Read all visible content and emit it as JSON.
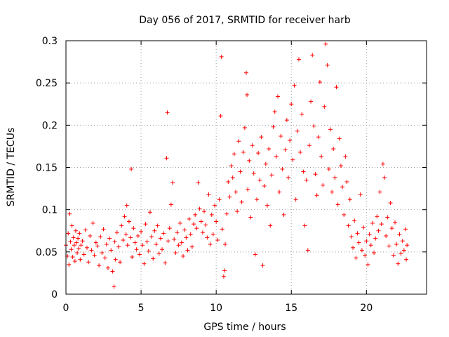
{
  "chart_data": {
    "type": "scatter",
    "title": "Day 056 of 2017, SRMTID for receiver harb",
    "xlabel": "GPS time / hours",
    "ylabel": "SRMTID / TECUs",
    "xlim": [
      0,
      24
    ],
    "ylim": [
      0,
      0.3
    ],
    "xticks": [
      "0",
      "5",
      "10",
      "15",
      "20"
    ],
    "yticks": [
      "0",
      "0.05",
      "0.1",
      "0.15",
      "0.2",
      "0.25",
      "0.3"
    ],
    "grid": true,
    "marker": "+",
    "color": "#ff0000",
    "series": [
      {
        "name": "SRMTID",
        "points": [
          [
            0.0,
            0.058
          ],
          [
            0.1,
            0.045
          ],
          [
            0.15,
            0.072
          ],
          [
            0.2,
            0.035
          ],
          [
            0.25,
            0.095
          ],
          [
            0.3,
            0.062
          ],
          [
            0.35,
            0.053
          ],
          [
            0.4,
            0.081
          ],
          [
            0.45,
            0.044
          ],
          [
            0.5,
            0.067
          ],
          [
            0.55,
            0.058
          ],
          [
            0.6,
            0.039
          ],
          [
            0.65,
            0.075
          ],
          [
            0.7,
            0.061
          ],
          [
            0.75,
            0.049
          ],
          [
            0.8,
            0.066
          ],
          [
            0.85,
            0.054
          ],
          [
            0.9,
            0.072
          ],
          [
            0.95,
            0.041
          ],
          [
            1.0,
            0.058
          ],
          [
            1.1,
            0.063
          ],
          [
            1.2,
            0.047
          ],
          [
            1.3,
            0.076
          ],
          [
            1.4,
            0.055
          ],
          [
            1.5,
            0.038
          ],
          [
            1.6,
            0.069
          ],
          [
            1.7,
            0.052
          ],
          [
            1.8,
            0.084
          ],
          [
            1.9,
            0.046
          ],
          [
            2.0,
            0.061
          ],
          [
            2.1,
            0.057
          ],
          [
            2.2,
            0.034
          ],
          [
            2.3,
            0.068
          ],
          [
            2.4,
            0.049
          ],
          [
            2.5,
            0.077
          ],
          [
            2.6,
            0.043
          ],
          [
            2.7,
            0.059
          ],
          [
            2.8,
            0.031
          ],
          [
            2.9,
            0.066
          ],
          [
            3.0,
            0.052
          ],
          [
            3.1,
            0.027
          ],
          [
            3.2,
            0.009
          ],
          [
            3.25,
            0.062
          ],
          [
            3.3,
            0.041
          ],
          [
            3.4,
            0.073
          ],
          [
            3.5,
            0.056
          ],
          [
            3.6,
            0.038
          ],
          [
            3.7,
            0.081
          ],
          [
            3.8,
            0.064
          ],
          [
            3.9,
            0.092
          ],
          [
            4.0,
            0.071
          ],
          [
            4.05,
            0.105
          ],
          [
            4.1,
            0.058
          ],
          [
            4.2,
            0.086
          ],
          [
            4.3,
            0.067
          ],
          [
            4.35,
            0.148
          ],
          [
            4.4,
            0.044
          ],
          [
            4.5,
            0.078
          ],
          [
            4.6,
            0.061
          ],
          [
            4.7,
            0.053
          ],
          [
            4.8,
            0.069
          ],
          [
            4.9,
            0.047
          ],
          [
            5.0,
            0.074
          ],
          [
            5.1,
            0.058
          ],
          [
            5.2,
            0.036
          ],
          [
            5.3,
            0.083
          ],
          [
            5.4,
            0.062
          ],
          [
            5.5,
            0.051
          ],
          [
            5.6,
            0.097
          ],
          [
            5.7,
            0.068
          ],
          [
            5.8,
            0.042
          ],
          [
            5.9,
            0.075
          ],
          [
            6.0,
            0.059
          ],
          [
            6.1,
            0.081
          ],
          [
            6.2,
            0.048
          ],
          [
            6.3,
            0.066
          ],
          [
            6.4,
            0.053
          ],
          [
            6.5,
            0.072
          ],
          [
            6.6,
            0.037
          ],
          [
            6.7,
            0.161
          ],
          [
            6.75,
            0.215
          ],
          [
            6.8,
            0.063
          ],
          [
            6.9,
            0.078
          ],
          [
            7.0,
            0.106
          ],
          [
            7.1,
            0.132
          ],
          [
            7.2,
            0.065
          ],
          [
            7.3,
            0.049
          ],
          [
            7.4,
            0.073
          ],
          [
            7.5,
            0.058
          ],
          [
            7.6,
            0.084
          ],
          [
            7.7,
            0.061
          ],
          [
            7.8,
            0.045
          ],
          [
            7.9,
            0.076
          ],
          [
            8.0,
            0.067
          ],
          [
            8.1,
            0.052
          ],
          [
            8.2,
            0.089
          ],
          [
            8.3,
            0.071
          ],
          [
            8.4,
            0.056
          ],
          [
            8.5,
            0.083
          ],
          [
            8.6,
            0.094
          ],
          [
            8.7,
            0.078
          ],
          [
            8.8,
            0.132
          ],
          [
            8.9,
            0.101
          ],
          [
            9.0,
            0.086
          ],
          [
            9.1,
            0.073
          ],
          [
            9.2,
            0.098
          ],
          [
            9.3,
            0.082
          ],
          [
            9.4,
            0.067
          ],
          [
            9.5,
            0.118
          ],
          [
            9.6,
            0.059
          ],
          [
            9.7,
            0.094
          ],
          [
            9.8,
            0.071
          ],
          [
            9.9,
            0.105
          ],
          [
            10.0,
            0.086
          ],
          [
            10.1,
            0.064
          ],
          [
            10.2,
            0.112
          ],
          [
            10.3,
            0.211
          ],
          [
            10.35,
            0.281
          ],
          [
            10.4,
            0.077
          ],
          [
            10.5,
            0.021
          ],
          [
            10.55,
            0.028
          ],
          [
            10.6,
            0.059
          ],
          [
            10.7,
            0.095
          ],
          [
            10.8,
            0.133
          ],
          [
            10.9,
            0.115
          ],
          [
            11.0,
            0.152
          ],
          [
            11.1,
            0.138
          ],
          [
            11.2,
            0.166
          ],
          [
            11.3,
            0.121
          ],
          [
            11.4,
            0.098
          ],
          [
            11.5,
            0.181
          ],
          [
            11.6,
            0.145
          ],
          [
            11.7,
            0.109
          ],
          [
            11.8,
            0.168
          ],
          [
            11.9,
            0.197
          ],
          [
            12.0,
            0.262
          ],
          [
            12.05,
            0.236
          ],
          [
            12.1,
            0.124
          ],
          [
            12.2,
            0.158
          ],
          [
            12.3,
            0.091
          ],
          [
            12.4,
            0.176
          ],
          [
            12.5,
            0.143
          ],
          [
            12.6,
            0.047
          ],
          [
            12.7,
            0.112
          ],
          [
            12.8,
            0.167
          ],
          [
            12.9,
            0.135
          ],
          [
            13.0,
            0.186
          ],
          [
            13.1,
            0.034
          ],
          [
            13.2,
            0.128
          ],
          [
            13.3,
            0.154
          ],
          [
            13.4,
            0.105
          ],
          [
            13.5,
            0.172
          ],
          [
            13.6,
            0.081
          ],
          [
            13.7,
            0.141
          ],
          [
            13.8,
            0.198
          ],
          [
            13.9,
            0.216
          ],
          [
            14.0,
            0.163
          ],
          [
            14.1,
            0.234
          ],
          [
            14.2,
            0.121
          ],
          [
            14.3,
            0.187
          ],
          [
            14.4,
            0.148
          ],
          [
            14.5,
            0.094
          ],
          [
            14.6,
            0.171
          ],
          [
            14.7,
            0.206
          ],
          [
            14.8,
            0.138
          ],
          [
            14.9,
            0.182
          ],
          [
            15.0,
            0.225
          ],
          [
            15.1,
            0.159
          ],
          [
            15.2,
            0.247
          ],
          [
            15.3,
            0.112
          ],
          [
            15.4,
            0.193
          ],
          [
            15.5,
            0.278
          ],
          [
            15.6,
            0.168
          ],
          [
            15.7,
            0.213
          ],
          [
            15.8,
            0.145
          ],
          [
            15.9,
            0.081
          ],
          [
            16.0,
            0.135
          ],
          [
            16.1,
            0.052
          ],
          [
            16.2,
            0.176
          ],
          [
            16.3,
            0.228
          ],
          [
            16.4,
            0.283
          ],
          [
            16.5,
            0.199
          ],
          [
            16.6,
            0.142
          ],
          [
            16.7,
            0.117
          ],
          [
            16.8,
            0.186
          ],
          [
            16.9,
            0.251
          ],
          [
            17.0,
            0.163
          ],
          [
            17.1,
            0.129
          ],
          [
            17.2,
            0.222
          ],
          [
            17.3,
            0.296
          ],
          [
            17.4,
            0.271
          ],
          [
            17.5,
            0.148
          ],
          [
            17.6,
            0.195
          ],
          [
            17.7,
            0.121
          ],
          [
            17.8,
            0.172
          ],
          [
            17.9,
            0.138
          ],
          [
            18.0,
            0.245
          ],
          [
            18.1,
            0.106
          ],
          [
            18.2,
            0.184
          ],
          [
            18.3,
            0.152
          ],
          [
            18.4,
            0.127
          ],
          [
            18.5,
            0.094
          ],
          [
            18.6,
            0.163
          ],
          [
            18.7,
            0.133
          ],
          [
            18.8,
            0.081
          ],
          [
            18.9,
            0.112
          ],
          [
            19.0,
            0.068
          ],
          [
            19.1,
            0.055
          ],
          [
            19.2,
            0.087
          ],
          [
            19.3,
            0.043
          ],
          [
            19.4,
            0.072
          ],
          [
            19.5,
            0.061
          ],
          [
            19.6,
            0.118
          ],
          [
            19.7,
            0.052
          ],
          [
            19.8,
            0.079
          ],
          [
            19.9,
            0.046
          ],
          [
            20.0,
            0.063
          ],
          [
            20.1,
            0.035
          ],
          [
            20.2,
            0.071
          ],
          [
            20.3,
            0.058
          ],
          [
            20.4,
            0.084
          ],
          [
            20.5,
            0.049
          ],
          [
            20.6,
            0.066
          ],
          [
            20.7,
            0.092
          ],
          [
            20.8,
            0.075
          ],
          [
            20.9,
            0.121
          ],
          [
            21.0,
            0.083
          ],
          [
            21.1,
            0.154
          ],
          [
            21.2,
            0.138
          ],
          [
            21.3,
            0.069
          ],
          [
            21.4,
            0.091
          ],
          [
            21.5,
            0.057
          ],
          [
            21.6,
            0.108
          ],
          [
            21.7,
            0.078
          ],
          [
            21.8,
            0.046
          ],
          [
            21.9,
            0.085
          ],
          [
            22.0,
            0.059
          ],
          [
            22.1,
            0.036
          ],
          [
            22.2,
            0.071
          ],
          [
            22.3,
            0.048
          ],
          [
            22.4,
            0.063
          ],
          [
            22.5,
            0.052
          ],
          [
            22.6,
            0.077
          ],
          [
            22.65,
            0.041
          ],
          [
            22.7,
            0.058
          ]
        ]
      }
    ]
  }
}
